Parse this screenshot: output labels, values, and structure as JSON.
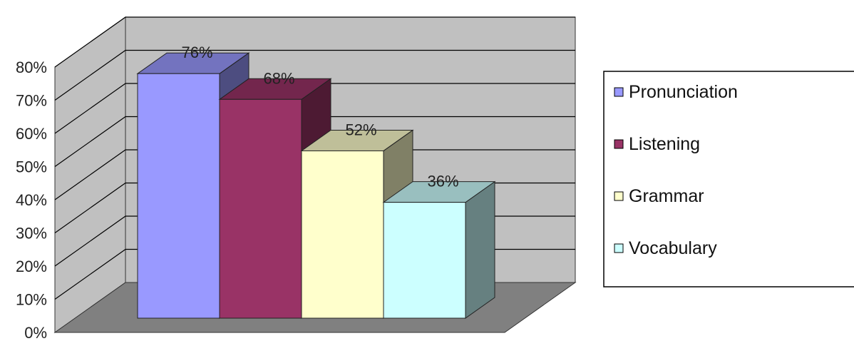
{
  "chart_data": {
    "type": "bar",
    "title": "",
    "xlabel": "",
    "ylabel": "",
    "categories": [
      "Pronunciation",
      "Listening",
      "Grammar",
      "Vocabulary"
    ],
    "values": [
      76,
      68,
      52,
      36
    ],
    "data_labels": [
      "76%",
      "68%",
      "52%",
      "36%"
    ],
    "ylim": [
      0,
      80
    ],
    "yticks": [
      0,
      10,
      20,
      30,
      40,
      50,
      60,
      70,
      80
    ],
    "ytick_labels": [
      "0%",
      "10%",
      "20%",
      "30%",
      "40%",
      "50%",
      "60%",
      "70%",
      "80%"
    ],
    "three_d": true,
    "grid": true,
    "legend_position": "right",
    "colors": {
      "Pronunciation": "#9999ff",
      "Listening": "#993366",
      "Grammar": "#ffffcc",
      "Vocabulary": "#ccffff",
      "walls": "#c0c0c0",
      "floor": "#808080"
    }
  }
}
